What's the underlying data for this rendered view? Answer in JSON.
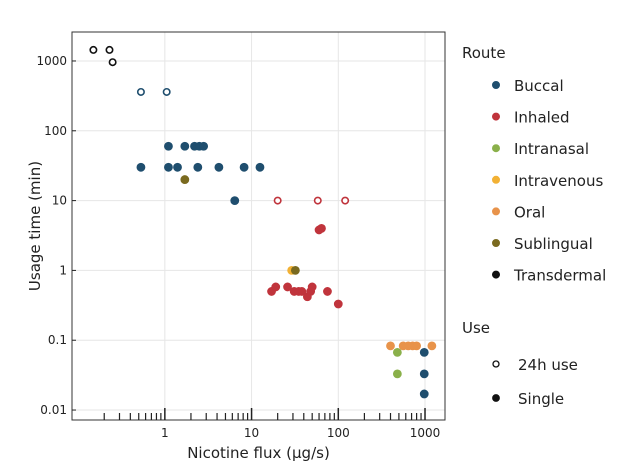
{
  "chart_data": {
    "type": "scatter",
    "xlabel": "Nicotine flux (µg/s)",
    "ylabel": "Usage time (min)",
    "x_scale": "log",
    "y_scale": "log",
    "xlim": [
      0.085,
      1700
    ],
    "ylim": [
      0.0072,
      2600
    ],
    "x_ticks": [
      1,
      10,
      100,
      1000
    ],
    "x_tick_labels": [
      "1",
      "10",
      "100",
      "1000"
    ],
    "y_ticks": [
      0.01,
      0.1,
      1,
      10,
      100,
      1000
    ],
    "y_tick_labels": [
      "0.01",
      "0.1",
      "1",
      "10",
      "100",
      "1000"
    ],
    "grid": true,
    "legend_placement": "right",
    "route_legend": {
      "title": "Route",
      "entries": [
        {
          "label": "Buccal",
          "color": "#1f4e6e"
        },
        {
          "label": "Inhaled",
          "color": "#c0343c"
        },
        {
          "label": "Intranasal",
          "color": "#8ab04a"
        },
        {
          "label": "Intravenous",
          "color": "#f2b134"
        },
        {
          "label": "Oral",
          "color": "#e8934a"
        },
        {
          "label": "Sublingual",
          "color": "#7a6a1f"
        },
        {
          "label": "Transdermal",
          "color": "#111111"
        }
      ]
    },
    "use_legend": {
      "title": "Use",
      "entries": [
        {
          "label": "24h use",
          "marker": "open"
        },
        {
          "label": "Single",
          "marker": "filled"
        }
      ]
    },
    "points": [
      {
        "x": 0.15,
        "y": 1440,
        "route": "Transdermal",
        "use": "24h use"
      },
      {
        "x": 0.23,
        "y": 1440,
        "route": "Transdermal",
        "use": "24h use"
      },
      {
        "x": 0.25,
        "y": 960,
        "route": "Transdermal",
        "use": "24h use"
      },
      {
        "x": 0.53,
        "y": 360,
        "route": "Buccal",
        "use": "24h use"
      },
      {
        "x": 1.05,
        "y": 360,
        "route": "Buccal",
        "use": "24h use"
      },
      {
        "x": 0.53,
        "y": 30,
        "route": "Buccal",
        "use": "Single"
      },
      {
        "x": 1.1,
        "y": 60,
        "route": "Buccal",
        "use": "Single"
      },
      {
        "x": 1.1,
        "y": 30,
        "route": "Buccal",
        "use": "Single"
      },
      {
        "x": 1.4,
        "y": 30,
        "route": "Buccal",
        "use": "Single"
      },
      {
        "x": 1.7,
        "y": 60,
        "route": "Buccal",
        "use": "Single"
      },
      {
        "x": 2.2,
        "y": 60,
        "route": "Buccal",
        "use": "Single"
      },
      {
        "x": 2.5,
        "y": 60,
        "route": "Buccal",
        "use": "Single"
      },
      {
        "x": 2.8,
        "y": 60,
        "route": "Buccal",
        "use": "Single"
      },
      {
        "x": 2.4,
        "y": 30,
        "route": "Buccal",
        "use": "Single"
      },
      {
        "x": 4.2,
        "y": 30,
        "route": "Buccal",
        "use": "Single"
      },
      {
        "x": 8.2,
        "y": 30,
        "route": "Buccal",
        "use": "Single"
      },
      {
        "x": 12.5,
        "y": 30,
        "route": "Buccal",
        "use": "Single"
      },
      {
        "x": 6.4,
        "y": 10,
        "route": "Buccal",
        "use": "Single"
      },
      {
        "x": 1.7,
        "y": 20,
        "route": "Sublingual",
        "use": "Single"
      },
      {
        "x": 20,
        "y": 10,
        "route": "Inhaled",
        "use": "24h use"
      },
      {
        "x": 58,
        "y": 10,
        "route": "Inhaled",
        "use": "24h use"
      },
      {
        "x": 120,
        "y": 10,
        "route": "Inhaled",
        "use": "24h use"
      },
      {
        "x": 60,
        "y": 3.8,
        "route": "Inhaled",
        "use": "Single"
      },
      {
        "x": 64,
        "y": 4.0,
        "route": "Inhaled",
        "use": "Single"
      },
      {
        "x": 29,
        "y": 1.0,
        "route": "Intravenous",
        "use": "Single"
      },
      {
        "x": 32,
        "y": 1.0,
        "route": "Sublingual",
        "use": "Single"
      },
      {
        "x": 17,
        "y": 0.5,
        "route": "Inhaled",
        "use": "Single"
      },
      {
        "x": 19,
        "y": 0.58,
        "route": "Inhaled",
        "use": "Single"
      },
      {
        "x": 26,
        "y": 0.58,
        "route": "Inhaled",
        "use": "Single"
      },
      {
        "x": 31,
        "y": 0.5,
        "route": "Inhaled",
        "use": "Single"
      },
      {
        "x": 35,
        "y": 0.5,
        "route": "Inhaled",
        "use": "Single"
      },
      {
        "x": 38,
        "y": 0.5,
        "route": "Inhaled",
        "use": "Single"
      },
      {
        "x": 44,
        "y": 0.42,
        "route": "Inhaled",
        "use": "Single"
      },
      {
        "x": 48,
        "y": 0.5,
        "route": "Inhaled",
        "use": "Single"
      },
      {
        "x": 50,
        "y": 0.58,
        "route": "Inhaled",
        "use": "Single"
      },
      {
        "x": 75,
        "y": 0.5,
        "route": "Inhaled",
        "use": "Single"
      },
      {
        "x": 100,
        "y": 0.33,
        "route": "Inhaled",
        "use": "Single"
      },
      {
        "x": 400,
        "y": 0.083,
        "route": "Oral",
        "use": "Single"
      },
      {
        "x": 560,
        "y": 0.083,
        "route": "Oral",
        "use": "Single"
      },
      {
        "x": 640,
        "y": 0.083,
        "route": "Oral",
        "use": "Single"
      },
      {
        "x": 720,
        "y": 0.083,
        "route": "Oral",
        "use": "Single"
      },
      {
        "x": 800,
        "y": 0.083,
        "route": "Oral",
        "use": "Single"
      },
      {
        "x": 1200,
        "y": 0.083,
        "route": "Oral",
        "use": "Single"
      },
      {
        "x": 480,
        "y": 0.067,
        "route": "Intranasal",
        "use": "Single"
      },
      {
        "x": 480,
        "y": 0.033,
        "route": "Intranasal",
        "use": "Single"
      },
      {
        "x": 980,
        "y": 0.067,
        "route": "Buccal",
        "use": "Single"
      },
      {
        "x": 980,
        "y": 0.033,
        "route": "Buccal",
        "use": "Single"
      },
      {
        "x": 980,
        "y": 0.017,
        "route": "Buccal",
        "use": "Single"
      }
    ]
  }
}
